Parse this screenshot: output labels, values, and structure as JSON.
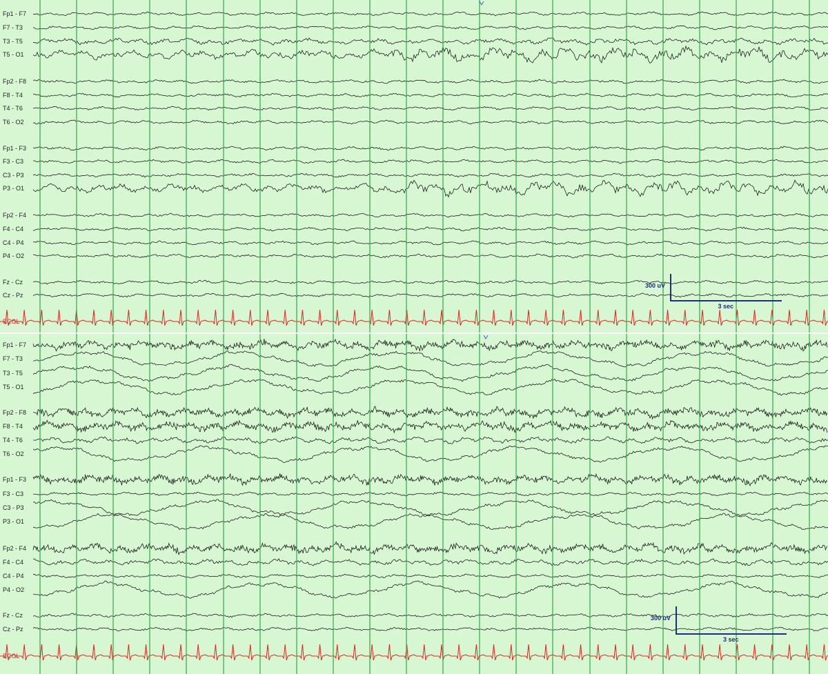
{
  "panels": [
    {
      "id": "top",
      "channels": [
        {
          "label": "Fp1 - F7",
          "activity": "low"
        },
        {
          "label": "F7 - T3",
          "activity": "low"
        },
        {
          "label": "T3 - T5",
          "activity": "medium"
        },
        {
          "label": "T5 - O1",
          "activity": "high"
        },
        {
          "label": "Fp2 - F8",
          "activity": "low"
        },
        {
          "label": "F8 - T4",
          "activity": "low"
        },
        {
          "label": "T4 - T6",
          "activity": "low"
        },
        {
          "label": "T6 - O2",
          "activity": "low"
        },
        {
          "label": "Fp1 - F3",
          "activity": "low"
        },
        {
          "label": "F3 - C3",
          "activity": "low"
        },
        {
          "label": "C3 - P3",
          "activity": "low"
        },
        {
          "label": "P3 - O1",
          "activity": "high"
        },
        {
          "label": "Fp2 - F4",
          "activity": "low"
        },
        {
          "label": "F4 - C4",
          "activity": "low"
        },
        {
          "label": "C4 - P4",
          "activity": "low"
        },
        {
          "label": "P4 - O2",
          "activity": "low"
        },
        {
          "label": "Fz - Cz",
          "activity": "low"
        },
        {
          "label": "Cz - Pz",
          "activity": "low"
        },
        {
          "label": "ECGL",
          "activity": "ecg"
        }
      ],
      "calibration": {
        "amplitude_label": "300 uV",
        "time_label": "3 sec"
      }
    },
    {
      "id": "bottom",
      "channels": [
        {
          "label": "Fp1 - F7",
          "activity": "muscle"
        },
        {
          "label": "F7 - T3",
          "activity": "slow"
        },
        {
          "label": "T3 - T5",
          "activity": "slow"
        },
        {
          "label": "T5 - O1",
          "activity": "slow"
        },
        {
          "label": "Fp2 - F8",
          "activity": "muscle"
        },
        {
          "label": "F8 - T4",
          "activity": "muscle"
        },
        {
          "label": "T4 - T6",
          "activity": "medium"
        },
        {
          "label": "T6 - O2",
          "activity": "slow"
        },
        {
          "label": "Fp1 - F3",
          "activity": "muscle"
        },
        {
          "label": "F3 - C3",
          "activity": "low"
        },
        {
          "label": "C3 - P3",
          "activity": "slow"
        },
        {
          "label": "P3 - O1",
          "activity": "slow"
        },
        {
          "label": "Fp2 - F4",
          "activity": "muscle"
        },
        {
          "label": "F4 - C4",
          "activity": "medium"
        },
        {
          "label": "C4 - P4",
          "activity": "low"
        },
        {
          "label": "P4 - O2",
          "activity": "slow"
        },
        {
          "label": "Fz - Cz",
          "activity": "low"
        },
        {
          "label": "Cz - Pz",
          "activity": "low"
        },
        {
          "label": "ECGL",
          "activity": "ecg"
        }
      ],
      "calibration": {
        "amplitude_label": "300 uV",
        "time_label": "3 sec"
      }
    }
  ],
  "colors": {
    "background": "#d7f7d3",
    "gridline": "#2fa84a",
    "trace": "#1c1c1c",
    "ecg": "#e8201a",
    "calibration": "#1f2b8a"
  }
}
